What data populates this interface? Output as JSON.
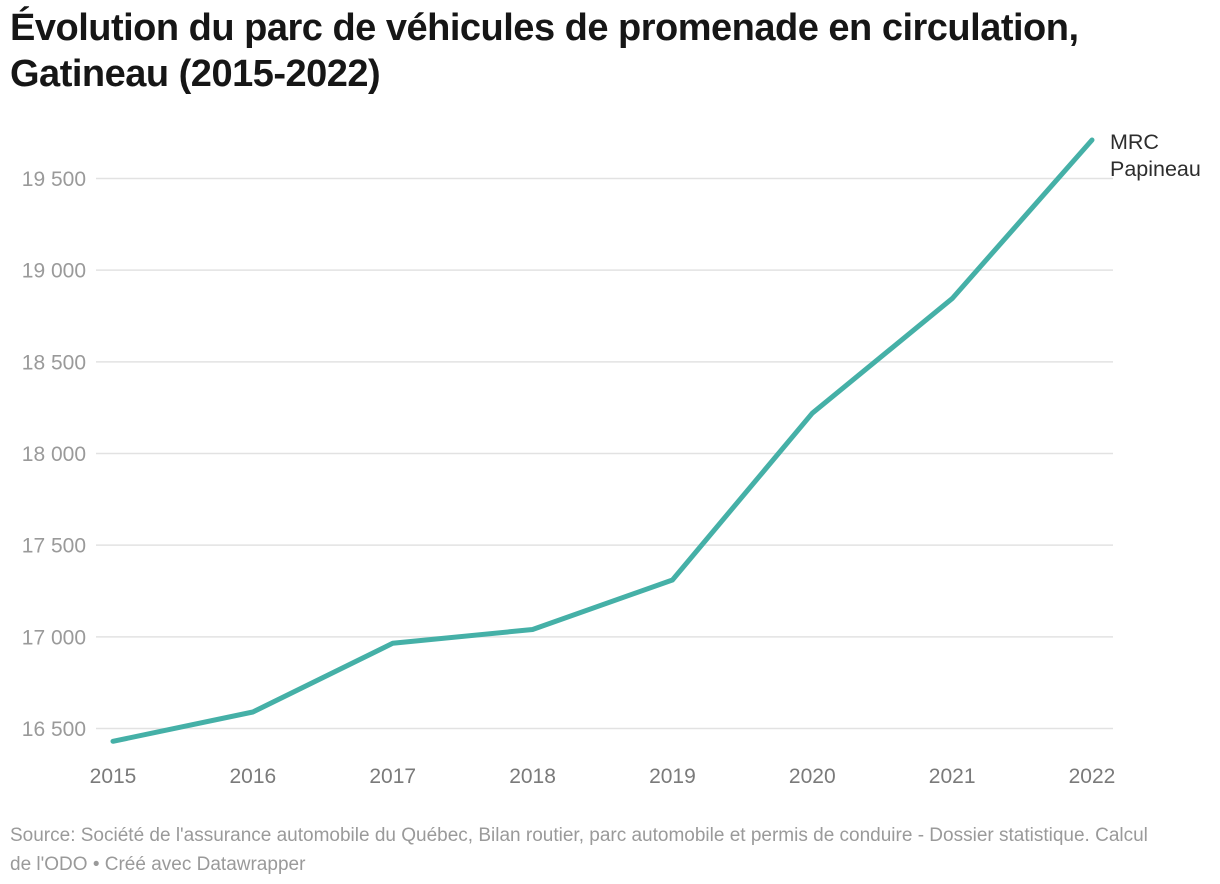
{
  "header": {
    "title": "Évolution du parc de véhicules de promenade en circulation, Gatineau (2015-2022)"
  },
  "footer": {
    "source": "Source: Société de l'assurance automobile du Québec, Bilan routier, parc automobile et permis de conduire - Dossier statistique. Calcul de l'ODO • Créé avec Datawrapper"
  },
  "colors": {
    "line": "#45b0a7",
    "grid": "#e2e2e2",
    "y_tick_text": "#9a9a9a",
    "x_tick_text": "#7a7a7a",
    "title_text": "#161616",
    "end_label_text": "#2d2d2d",
    "source_text": "#9a9a9a",
    "background": "#ffffff"
  },
  "chart_data": {
    "type": "line",
    "title": "Évolution du parc de véhicules de promenade en circulation, Gatineau (2015-2022)",
    "xlabel": "",
    "ylabel": "",
    "x": [
      2015,
      2016,
      2017,
      2018,
      2019,
      2020,
      2021,
      2022
    ],
    "x_tick_labels": [
      "2015",
      "2016",
      "2017",
      "2018",
      "2019",
      "2020",
      "2021",
      "2022"
    ],
    "series": [
      {
        "name": "MRC Papineau",
        "label_lines": [
          "MRC",
          "Papineau"
        ],
        "values": [
          16430,
          16590,
          16965,
          17040,
          17310,
          18220,
          18845,
          19710
        ]
      }
    ],
    "yticks": [
      {
        "value": 16500,
        "label": "16 500"
      },
      {
        "value": 17000,
        "label": "17 000"
      },
      {
        "value": 17500,
        "label": "17 500"
      },
      {
        "value": 18000,
        "label": "18 000"
      },
      {
        "value": 18500,
        "label": "18 500"
      },
      {
        "value": 19000,
        "label": "19 000"
      },
      {
        "value": 19500,
        "label": "19 500"
      }
    ],
    "ylim": [
      16400,
      19750
    ],
    "grid": true,
    "legend_position": "end-of-line"
  }
}
